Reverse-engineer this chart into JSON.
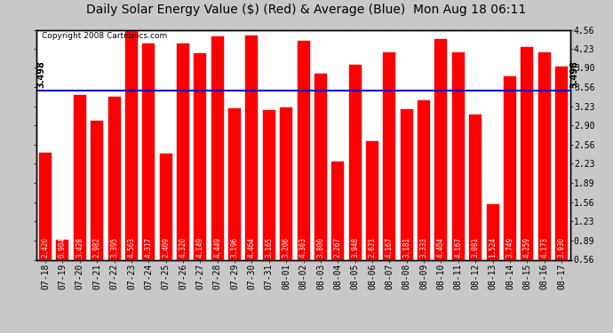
{
  "title": "Daily Solar Energy Value ($) (Red) & Average (Blue)  Mon Aug 18 06:11",
  "copyright": "Copyright 2008 Cartronics.com",
  "categories": [
    "07-18",
    "07-19",
    "07-20",
    "07-21",
    "07-22",
    "07-23",
    "07-24",
    "07-25",
    "07-26",
    "07-27",
    "07-28",
    "07-29",
    "07-30",
    "07-31",
    "08-01",
    "08-02",
    "08-03",
    "08-04",
    "08-05",
    "08-06",
    "08-07",
    "08-08",
    "08-09",
    "08-10",
    "08-11",
    "08-12",
    "08-13",
    "08-14",
    "08-15",
    "08-16",
    "08-17"
  ],
  "values": [
    2.42,
    0.904,
    3.428,
    2.982,
    3.395,
    4.563,
    4.317,
    2.409,
    4.32,
    4.149,
    4.449,
    3.196,
    4.464,
    3.165,
    3.206,
    4.363,
    3.8,
    2.267,
    3.948,
    2.621,
    4.167,
    3.181,
    3.333,
    4.404,
    4.167,
    3.081,
    1.524,
    3.749,
    4.259,
    4.173,
    3.93
  ],
  "average": 3.498,
  "bar_color": "#ff0000",
  "avg_line_color": "#0000cc",
  "fig_bg_color": "#c8c8c8",
  "plot_bg_color": "#ffffff",
  "yticks": [
    0.56,
    0.89,
    1.23,
    1.56,
    1.89,
    2.23,
    2.56,
    2.9,
    3.23,
    3.56,
    3.9,
    4.23,
    4.56
  ],
  "ymin": 0.56,
  "ymax": 4.56,
  "avg_label": "3.498",
  "title_fontsize": 10,
  "copyright_fontsize": 6.5,
  "bar_value_fontsize": 5.5,
  "tick_fontsize": 7,
  "grid_color": "#ffffff",
  "grid_linestyle": "--",
  "bar_edge_color": "#dd0000",
  "avg_text_fontsize": 7,
  "border_color": "#000000"
}
